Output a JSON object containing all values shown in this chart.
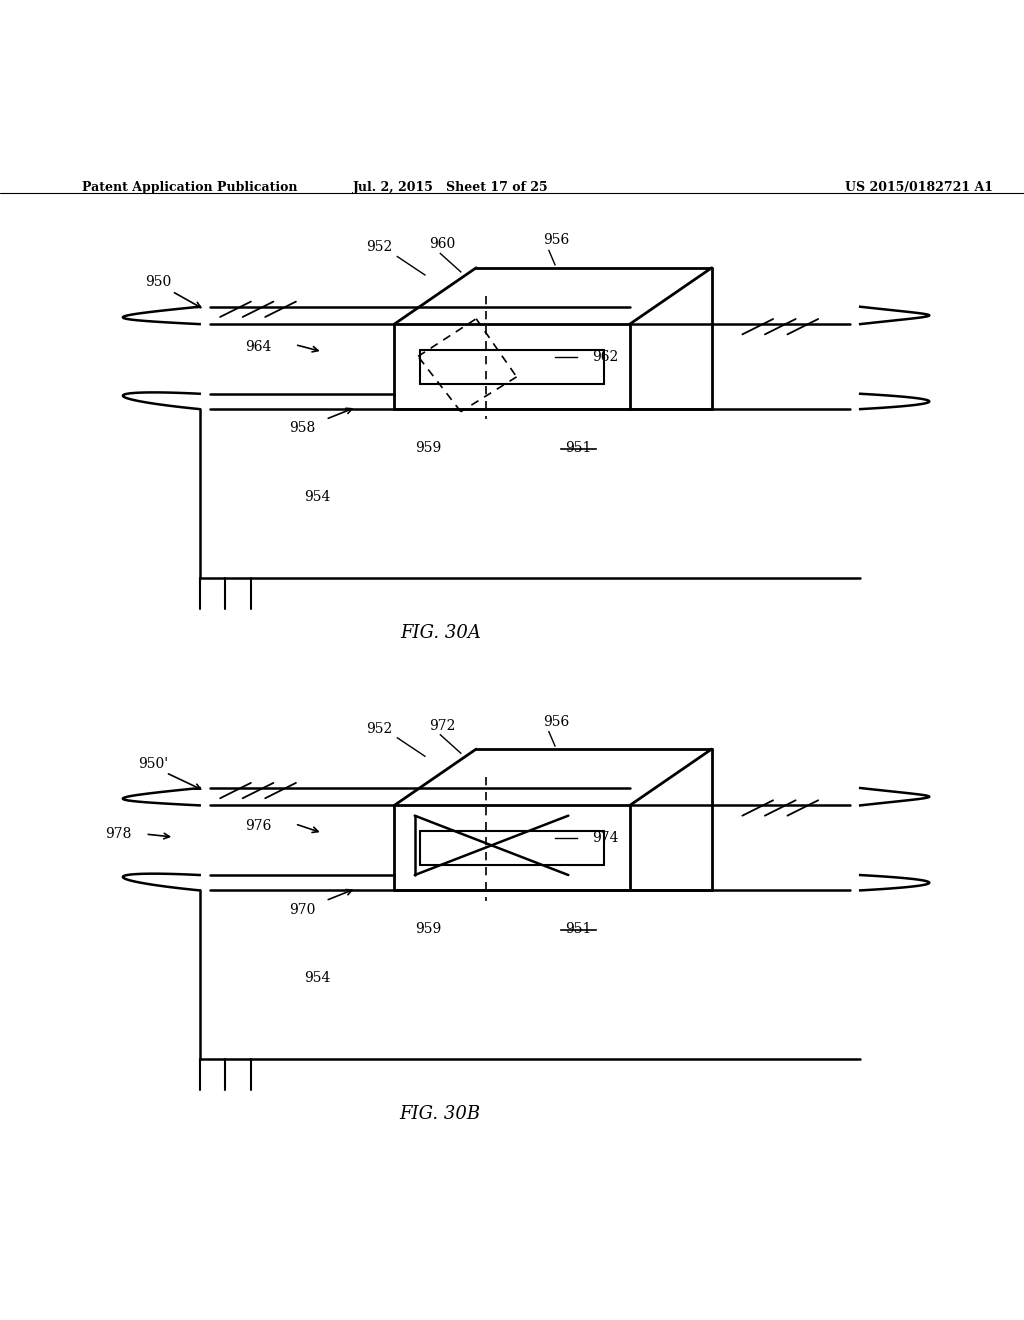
{
  "bg_color": "#ffffff",
  "line_color": "#000000",
  "header_left": "Patent Application Publication",
  "header_mid": "Jul. 2, 2015   Sheet 17 of 25",
  "header_right": "US 2015/0182721 A1",
  "fig_label_A": "FIG. 30A",
  "fig_label_B": "FIG. 30B"
}
